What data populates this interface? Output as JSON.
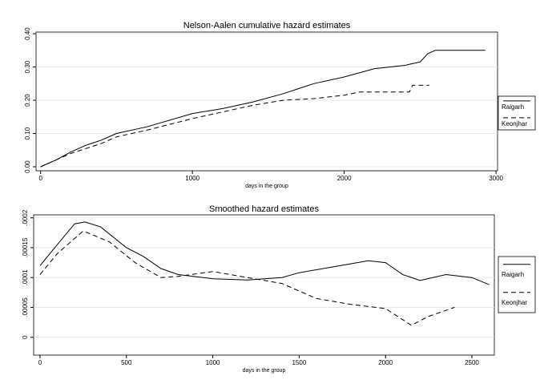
{
  "chart_data": [
    {
      "type": "line",
      "title": "Nelson-Aalen cumulative hazard estimates",
      "x_label": "days in the group",
      "xlim": [
        -30,
        3010
      ],
      "ylim": [
        -0.012,
        0.405
      ],
      "xticks": [
        0,
        1000,
        2000,
        3000
      ],
      "yticks": [
        {
          "value": 0,
          "label": "0.00"
        },
        {
          "value": 0.1,
          "label": "0.10"
        },
        {
          "value": 0.2,
          "label": "0.20"
        },
        {
          "value": 0.3,
          "label": "0.30"
        },
        {
          "value": 0.4,
          "label": "0.40"
        }
      ],
      "grid": true,
      "legend": "right",
      "series": [
        {
          "name": "Raigarh",
          "color": "#000000",
          "line_style": "solid",
          "x": [
            0,
            100,
            200,
            300,
            400,
            500,
            700,
            1000,
            1200,
            1400,
            1600,
            1700,
            1800,
            2000,
            2200,
            2400,
            2500,
            2550,
            2600,
            2930
          ],
          "values": [
            0,
            0.02,
            0.045,
            0.065,
            0.08,
            0.1,
            0.12,
            0.16,
            0.175,
            0.195,
            0.22,
            0.235,
            0.25,
            0.27,
            0.295,
            0.305,
            0.315,
            0.34,
            0.35,
            0.35
          ]
        },
        {
          "name": "Keonjhar",
          "color": "#000000",
          "line_style": "dashed",
          "x": [
            0,
            100,
            200,
            300,
            400,
            500,
            700,
            1000,
            1200,
            1400,
            1600,
            1800,
            2000,
            2100,
            2430,
            2450,
            2560
          ],
          "values": [
            0,
            0.02,
            0.04,
            0.055,
            0.07,
            0.09,
            0.11,
            0.145,
            0.165,
            0.185,
            0.2,
            0.205,
            0.215,
            0.225,
            0.225,
            0.245,
            0.245
          ]
        }
      ]
    },
    {
      "type": "line",
      "title": "Smoothed hazard estimates",
      "x_label": "days in the group",
      "xlim": [
        -37,
        2630
      ],
      "ylim": [
        -3e-05,
        0.000205
      ],
      "xticks": [
        0,
        500,
        1000,
        1500,
        2000,
        2500
      ],
      "yticks": [
        0,
        {
          "value": 5e-05,
          "label": ".00005"
        },
        {
          "value": 0.0001,
          "label": ".0001"
        },
        {
          "value": 0.00015,
          "label": ".00015"
        },
        {
          "value": 0.0002,
          "label": ".0002"
        }
      ],
      "grid": true,
      "legend": "right",
      "series": [
        {
          "name": "Raigarh",
          "color": "#000000",
          "line_style": "solid",
          "x": [
            0,
            100,
            200,
            260,
            350,
            500,
            600,
            700,
            800,
            1000,
            1200,
            1400,
            1500,
            1700,
            1900,
            2000,
            2100,
            2200,
            2350,
            2500,
            2600
          ],
          "values": [
            0.00012,
            0.000155,
            0.00019,
            0.000193,
            0.000185,
            0.00015,
            0.000135,
            0.000115,
            0.000105,
            9.8e-05,
            9.6e-05,
            0.0001,
            0.000108,
            0.000118,
            0.000128,
            0.000125,
            0.000105,
            9.5e-05,
            0.000105,
            0.0001,
            8.8e-05
          ]
        },
        {
          "name": "Keonjhar",
          "color": "#000000",
          "line_style": "dashed",
          "x": [
            0,
            100,
            250,
            400,
            550,
            700,
            800,
            1000,
            1200,
            1400,
            1600,
            1800,
            2000,
            2150,
            2250,
            2400
          ],
          "values": [
            0.000105,
            0.00014,
            0.000178,
            0.00016,
            0.000125,
            0.0001,
            0.000102,
            0.00011,
            0.0001,
            9e-05,
            6.5e-05,
            5.5e-05,
            4.8e-05,
            2e-05,
            3.5e-05,
            5e-05
          ]
        }
      ]
    }
  ]
}
